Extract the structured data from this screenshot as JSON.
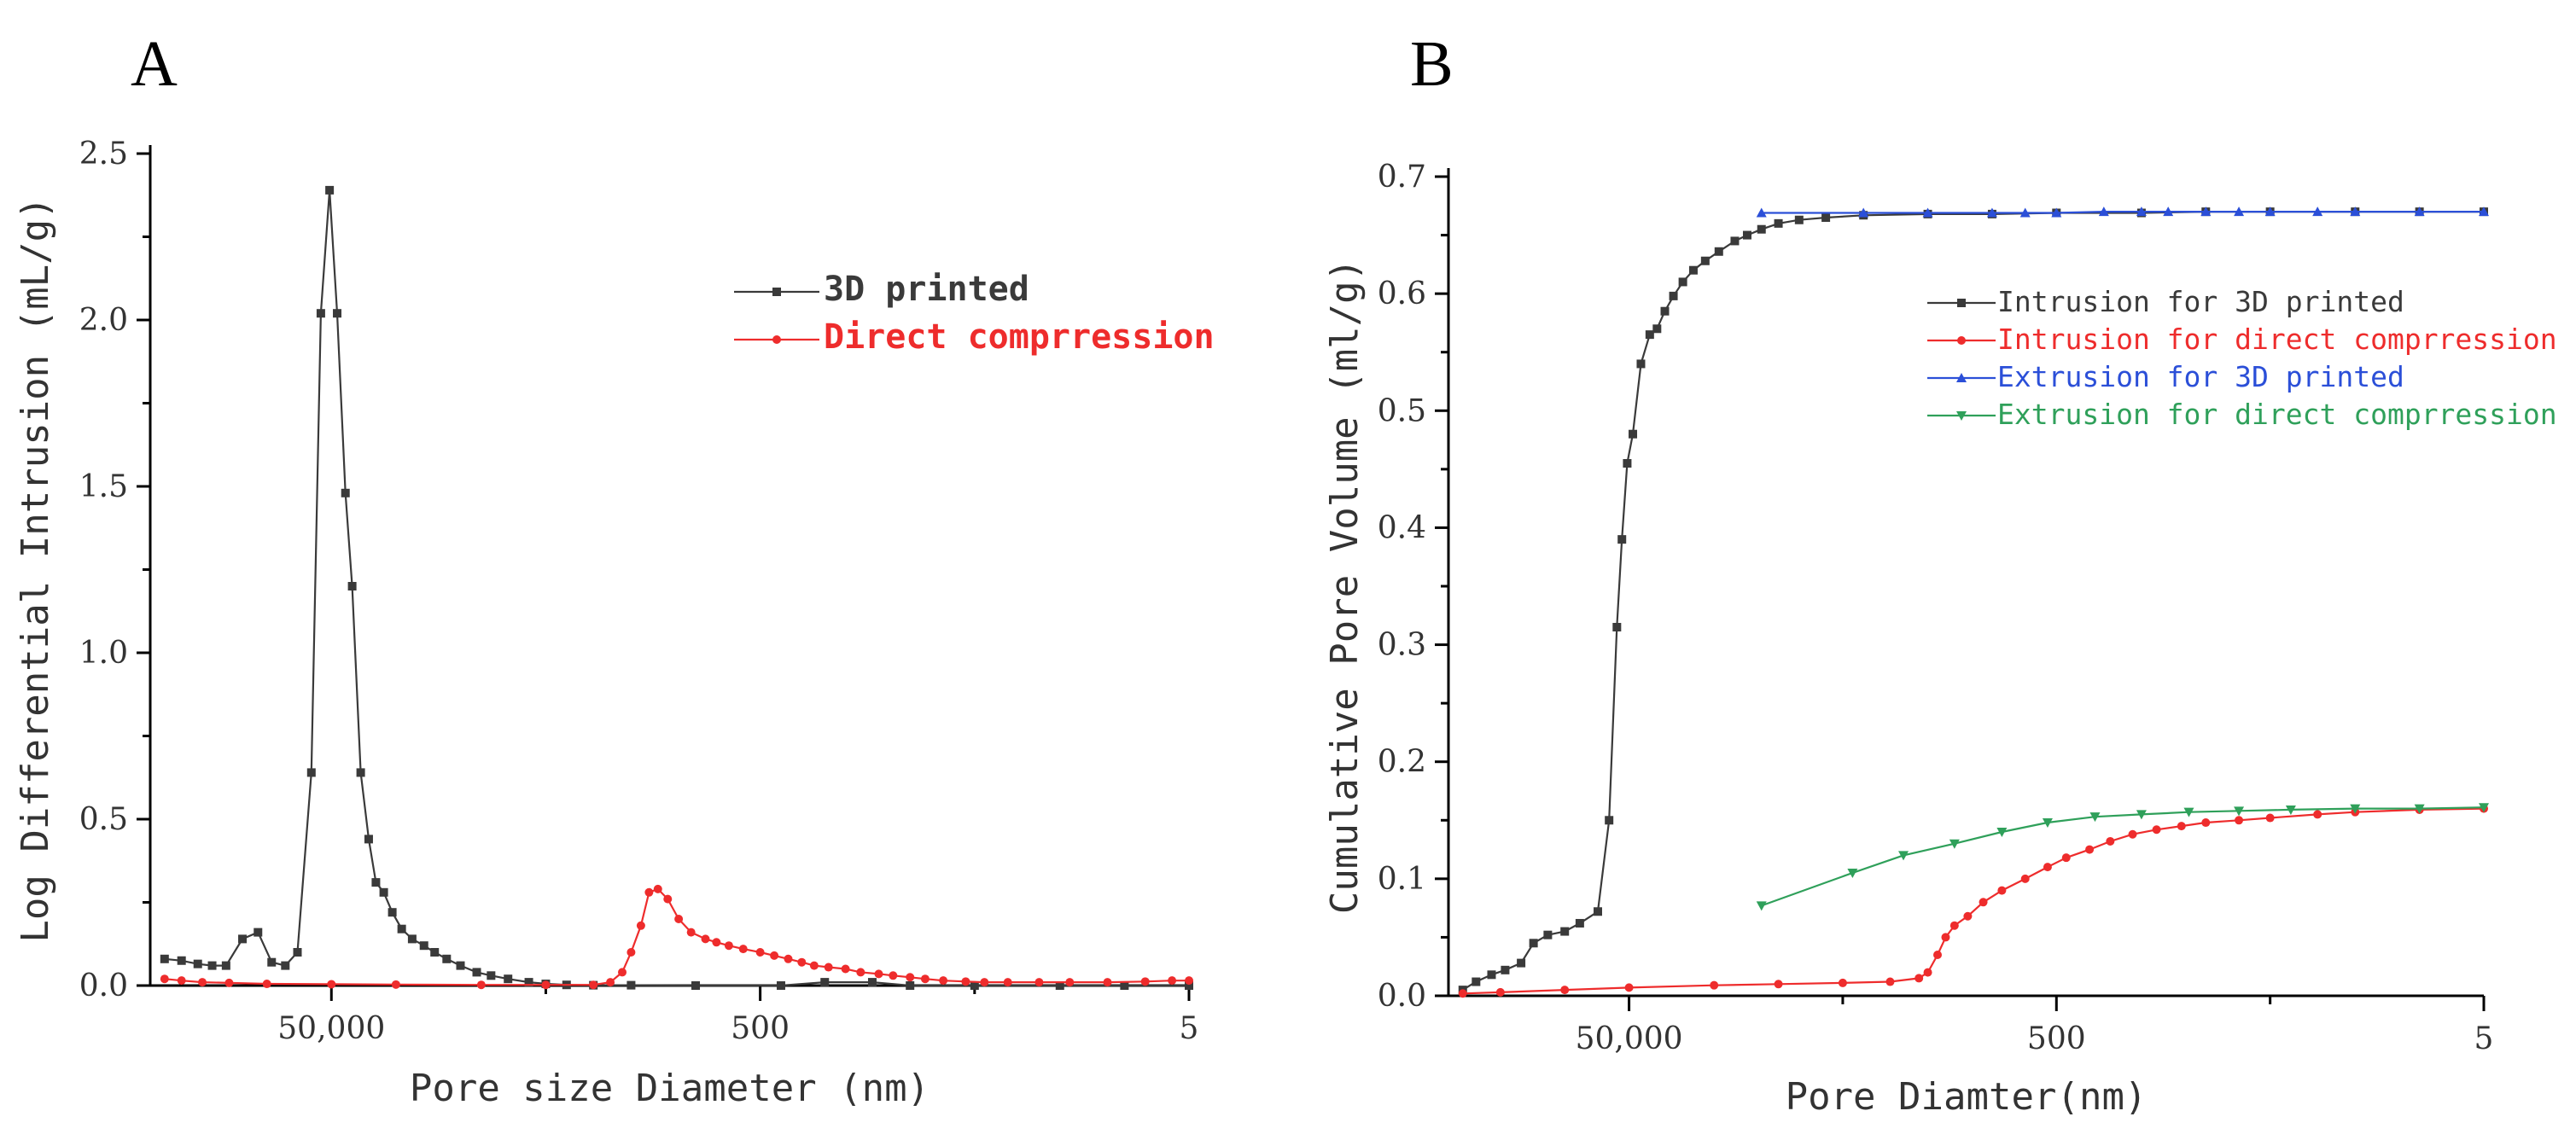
{
  "chart_data": [
    {
      "panel": "A",
      "type": "line",
      "xscale": "log-reversed",
      "xlim": [
        350000,
        5
      ],
      "ylim": [
        0,
        2.5
      ],
      "xlabel": "Pore size Diameter (nm)",
      "ylabel": "Log Differential Intrusion (mL/g)",
      "xticks": [
        {
          "value": 50000,
          "label": "50,000"
        },
        {
          "value": 500,
          "label": "500"
        },
        {
          "value": 5,
          "label": "5"
        }
      ],
      "yticks": [
        {
          "value": 0,
          "label": "0.0"
        },
        {
          "value": 0.5,
          "label": "0.5"
        },
        {
          "value": 1,
          "label": "1.0"
        },
        {
          "value": 1.5,
          "label": "1.5"
        },
        {
          "value": 2,
          "label": "2.0"
        },
        {
          "value": 2.5,
          "label": "2.5"
        }
      ],
      "legend_position": "top-right",
      "series": [
        {
          "name": "3D printed",
          "color": "#3a3a3a",
          "marker": "square",
          "points": [
            [
              300000,
              0.08
            ],
            [
              250000,
              0.075
            ],
            [
              210000,
              0.065
            ],
            [
              180000,
              0.06
            ],
            [
              155000,
              0.06
            ],
            [
              130000,
              0.14
            ],
            [
              110000,
              0.16
            ],
            [
              95000,
              0.07
            ],
            [
              82000,
              0.06
            ],
            [
              72000,
              0.1
            ],
            [
              62000,
              0.64
            ],
            [
              56000,
              2.02
            ],
            [
              51000,
              2.39
            ],
            [
              47000,
              2.02
            ],
            [
              43000,
              1.48
            ],
            [
              40000,
              1.2
            ],
            [
              36500,
              0.64
            ],
            [
              33500,
              0.44
            ],
            [
              31000,
              0.31
            ],
            [
              28500,
              0.28
            ],
            [
              26000,
              0.22
            ],
            [
              23500,
              0.17
            ],
            [
              21000,
              0.14
            ],
            [
              18500,
              0.12
            ],
            [
              16500,
              0.1
            ],
            [
              14500,
              0.08
            ],
            [
              12500,
              0.06
            ],
            [
              10500,
              0.04
            ],
            [
              9000,
              0.03
            ],
            [
              7500,
              0.02
            ],
            [
              6000,
              0.01
            ],
            [
              5000,
              0.005
            ],
            [
              4000,
              0.002
            ],
            [
              3000,
              0.001
            ],
            [
              2000,
              0.001
            ],
            [
              1000,
              0.0
            ],
            [
              400,
              0.0
            ],
            [
              250,
              0.01
            ],
            [
              150,
              0.01
            ],
            [
              100,
              0.0
            ],
            [
              50,
              0.0
            ],
            [
              20,
              0.0
            ],
            [
              10,
              0.0
            ],
            [
              5,
              0.0
            ]
          ]
        },
        {
          "name": "Direct comprression",
          "color": "#ee2c2c",
          "marker": "circle",
          "points": [
            [
              300000,
              0.02
            ],
            [
              250000,
              0.015
            ],
            [
              200000,
              0.01
            ],
            [
              150000,
              0.008
            ],
            [
              100000,
              0.005
            ],
            [
              50000,
              0.004
            ],
            [
              25000,
              0.003
            ],
            [
              10000,
              0.002
            ],
            [
              5000,
              0.002
            ],
            [
              3000,
              0.002
            ],
            [
              2500,
              0.01
            ],
            [
              2200,
              0.04
            ],
            [
              2000,
              0.1
            ],
            [
              1800,
              0.18
            ],
            [
              1650,
              0.28
            ],
            [
              1500,
              0.29
            ],
            [
              1350,
              0.26
            ],
            [
              1200,
              0.2
            ],
            [
              1050,
              0.16
            ],
            [
              900,
              0.14
            ],
            [
              800,
              0.13
            ],
            [
              700,
              0.12
            ],
            [
              600,
              0.11
            ],
            [
              500,
              0.1
            ],
            [
              430,
              0.09
            ],
            [
              370,
              0.08
            ],
            [
              320,
              0.07
            ],
            [
              280,
              0.06
            ],
            [
              240,
              0.055
            ],
            [
              200,
              0.05
            ],
            [
              170,
              0.04
            ],
            [
              140,
              0.035
            ],
            [
              120,
              0.03
            ],
            [
              100,
              0.025
            ],
            [
              85,
              0.02
            ],
            [
              70,
              0.015
            ],
            [
              55,
              0.012
            ],
            [
              45,
              0.01
            ],
            [
              35,
              0.01
            ],
            [
              25,
              0.01
            ],
            [
              18,
              0.01
            ],
            [
              12,
              0.01
            ],
            [
              8,
              0.012
            ],
            [
              6,
              0.015
            ],
            [
              5,
              0.015
            ]
          ]
        }
      ]
    },
    {
      "panel": "B",
      "type": "line",
      "xscale": "log-reversed",
      "xlim": [
        350000,
        5
      ],
      "ylim": [
        0,
        0.7
      ],
      "xlabel": "Pore Diamter(nm)",
      "ylabel": "Cumulative Pore Volume (ml/g)",
      "xticks": [
        {
          "value": 50000,
          "label": "50,000"
        },
        {
          "value": 500,
          "label": "500"
        },
        {
          "value": 5,
          "label": "5"
        }
      ],
      "yticks": [
        {
          "value": 0,
          "label": "0.0"
        },
        {
          "value": 0.1,
          "label": "0.1"
        },
        {
          "value": 0.2,
          "label": "0.2"
        },
        {
          "value": 0.3,
          "label": "0.3"
        },
        {
          "value": 0.4,
          "label": "0.4"
        },
        {
          "value": 0.5,
          "label": "0.5"
        },
        {
          "value": 0.6,
          "label": "0.6"
        },
        {
          "value": 0.7,
          "label": "0.7"
        }
      ],
      "legend_position": "top-right",
      "series": [
        {
          "name": "Intrusion for 3D printed",
          "color": "#3a3a3a",
          "marker": "square",
          "points": [
            [
              300000,
              0.005
            ],
            [
              260000,
              0.012
            ],
            [
              220000,
              0.018
            ],
            [
              190000,
              0.022
            ],
            [
              160000,
              0.028
            ],
            [
              140000,
              0.045
            ],
            [
              120000,
              0.052
            ],
            [
              100000,
              0.055
            ],
            [
              85000,
              0.062
            ],
            [
              70000,
              0.072
            ],
            [
              62000,
              0.15
            ],
            [
              57000,
              0.315
            ],
            [
              54000,
              0.39
            ],
            [
              51000,
              0.455
            ],
            [
              48000,
              0.48
            ],
            [
              44000,
              0.54
            ],
            [
              40000,
              0.565
            ],
            [
              37000,
              0.57
            ],
            [
              34000,
              0.585
            ],
            [
              31000,
              0.598
            ],
            [
              28000,
              0.61
            ],
            [
              25000,
              0.62
            ],
            [
              22000,
              0.628
            ],
            [
              19000,
              0.636
            ],
            [
              16000,
              0.645
            ],
            [
              14000,
              0.65
            ],
            [
              12000,
              0.655
            ],
            [
              10000,
              0.66
            ],
            [
              8000,
              0.663
            ],
            [
              6000,
              0.665
            ],
            [
              4000,
              0.667
            ],
            [
              2000,
              0.668
            ],
            [
              1000,
              0.668
            ],
            [
              500,
              0.669
            ],
            [
              200,
              0.669
            ],
            [
              100,
              0.67
            ],
            [
              50,
              0.67
            ],
            [
              20,
              0.67
            ],
            [
              10,
              0.67
            ],
            [
              5,
              0.67
            ]
          ]
        },
        {
          "name": "Intrusion for direct comprression",
          "color": "#ee2c2c",
          "marker": "circle",
          "points": [
            [
              300000,
              0.002
            ],
            [
              200000,
              0.003
            ],
            [
              100000,
              0.005
            ],
            [
              50000,
              0.007
            ],
            [
              20000,
              0.009
            ],
            [
              10000,
              0.01
            ],
            [
              5000,
              0.011
            ],
            [
              3000,
              0.012
            ],
            [
              2200,
              0.015
            ],
            [
              2000,
              0.02
            ],
            [
              1800,
              0.035
            ],
            [
              1650,
              0.05
            ],
            [
              1500,
              0.06
            ],
            [
              1300,
              0.068
            ],
            [
              1100,
              0.08
            ],
            [
              900,
              0.09
            ],
            [
              700,
              0.1
            ],
            [
              550,
              0.11
            ],
            [
              450,
              0.118
            ],
            [
              350,
              0.125
            ],
            [
              280,
              0.132
            ],
            [
              220,
              0.138
            ],
            [
              170,
              0.142
            ],
            [
              130,
              0.145
            ],
            [
              100,
              0.148
            ],
            [
              70,
              0.15
            ],
            [
              50,
              0.152
            ],
            [
              30,
              0.155
            ],
            [
              20,
              0.157
            ],
            [
              10,
              0.159
            ],
            [
              5,
              0.16
            ]
          ]
        },
        {
          "name": "Extrusion for 3D printed",
          "color": "#2b4fd8",
          "marker": "triangle-up",
          "points": [
            [
              12000,
              0.669
            ],
            [
              4000,
              0.669
            ],
            [
              2000,
              0.669
            ],
            [
              1000,
              0.669
            ],
            [
              700,
              0.669
            ],
            [
              500,
              0.669
            ],
            [
              300,
              0.67
            ],
            [
              200,
              0.67
            ],
            [
              150,
              0.67
            ],
            [
              100,
              0.67
            ],
            [
              70,
              0.67
            ],
            [
              50,
              0.67
            ],
            [
              30,
              0.67
            ],
            [
              20,
              0.67
            ],
            [
              10,
              0.67
            ],
            [
              5,
              0.67
            ]
          ]
        },
        {
          "name": "Extrusion for direct comprression",
          "color": "#2fa05a",
          "marker": "triangle-down",
          "points": [
            [
              12000,
              0.077
            ],
            [
              4500,
              0.105
            ],
            [
              2600,
              0.12
            ],
            [
              1500,
              0.13
            ],
            [
              900,
              0.14
            ],
            [
              550,
              0.148
            ],
            [
              330,
              0.153
            ],
            [
              200,
              0.155
            ],
            [
              120,
              0.157
            ],
            [
              70,
              0.158
            ],
            [
              40,
              0.159
            ],
            [
              20,
              0.16
            ],
            [
              10,
              0.16
            ],
            [
              5,
              0.161
            ]
          ]
        }
      ]
    }
  ]
}
